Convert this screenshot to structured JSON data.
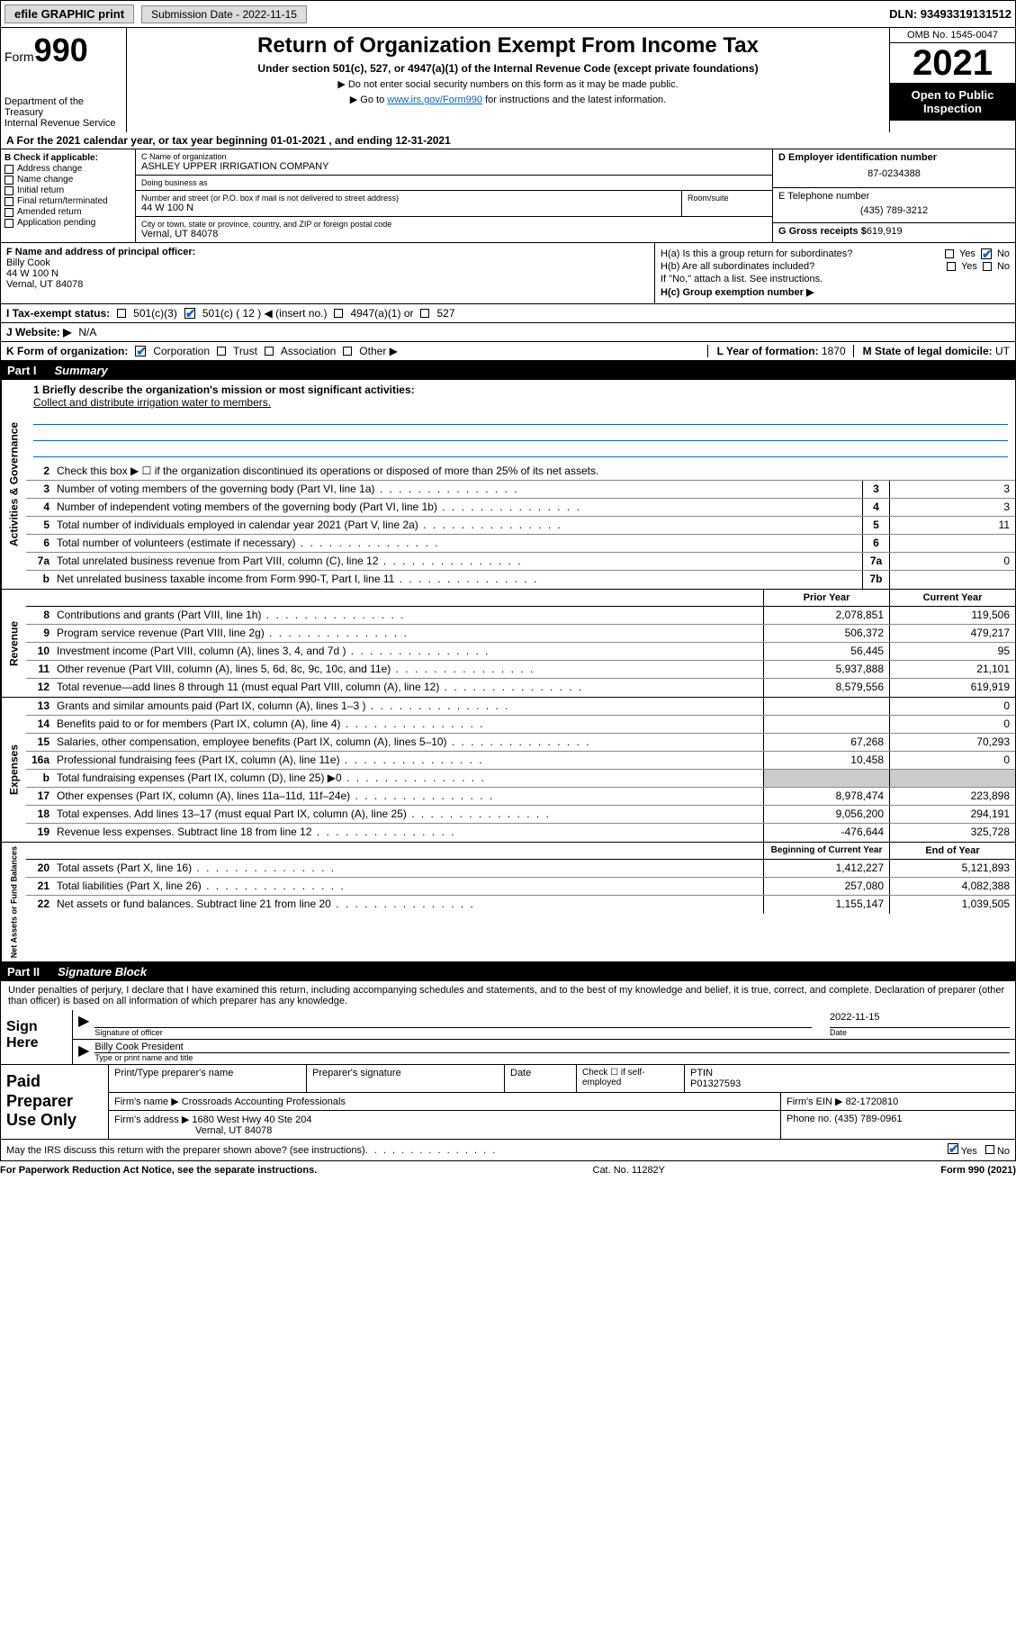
{
  "topbar": {
    "efile": "efile GRAPHIC print",
    "submission_label": "Submission Date - 2022-11-15",
    "dln": "DLN: 93493319131512"
  },
  "header": {
    "form_prefix": "Form",
    "form_number": "990",
    "dept": "Department of the Treasury",
    "irs": "Internal Revenue Service",
    "title": "Return of Organization Exempt From Income Tax",
    "subtitle": "Under section 501(c), 527, or 4947(a)(1) of the Internal Revenue Code (except private foundations)",
    "note1": "▶ Do not enter social security numbers on this form as it may be made public.",
    "note2_pre": "▶ Go to ",
    "note2_link": "www.irs.gov/Form990",
    "note2_post": " for instructions and the latest information.",
    "omb": "OMB No. 1545-0047",
    "year": "2021",
    "open": "Open to Public Inspection"
  },
  "row_a": "A For the 2021 calendar year, or tax year beginning 01-01-2021   , and ending 12-31-2021",
  "section_b": {
    "label": "B Check if applicable:",
    "opts": [
      "Address change",
      "Name change",
      "Initial return",
      "Final return/terminated",
      "Amended return",
      "Application pending"
    ]
  },
  "section_c": {
    "name_lbl": "C Name of organization",
    "name": "ASHLEY UPPER IRRIGATION COMPANY",
    "dba_lbl": "Doing business as",
    "dba": "",
    "addr_lbl": "Number and street (or P.O. box if mail is not delivered to street address)",
    "room_lbl": "Room/suite",
    "addr": "44 W 100 N",
    "city_lbl": "City or town, state or province, country, and ZIP or foreign postal code",
    "city": "Vernal, UT  84078"
  },
  "section_d": {
    "ein_lbl": "D Employer identification number",
    "ein": "87-0234388",
    "tel_lbl": "E Telephone number",
    "tel": "(435) 789-3212",
    "gross_lbl": "G Gross receipts $",
    "gross": "619,919"
  },
  "section_f": {
    "lbl": "F Name and address of principal officer:",
    "name": "Billy Cook",
    "addr1": "44 W 100 N",
    "addr2": "Vernal, UT  84078"
  },
  "section_h": {
    "ha": "H(a)  Is this a group return for subordinates?",
    "ha_yes": "Yes",
    "ha_no": "No",
    "hb": "H(b)  Are all subordinates included?",
    "hb_note": "If \"No,\" attach a list. See instructions.",
    "hc": "H(c)  Group exemption number ▶"
  },
  "row_i": {
    "lbl": "I   Tax-exempt status:",
    "o1": "501(c)(3)",
    "o2": "501(c) ( 12 ) ◀ (insert no.)",
    "o3": "4947(a)(1) or",
    "o4": "527"
  },
  "row_j": {
    "lbl": "J   Website: ▶",
    "val": "N/A"
  },
  "row_k": {
    "lbl": "K Form of organization:",
    "o1": "Corporation",
    "o2": "Trust",
    "o3": "Association",
    "o4": "Other ▶",
    "l_lbl": "L Year of formation:",
    "l_val": "1870",
    "m_lbl": "M State of legal domicile:",
    "m_val": "UT"
  },
  "part1": {
    "num": "Part I",
    "title": "Summary"
  },
  "mission": {
    "lbl": "1   Briefly describe the organization's mission or most significant activities:",
    "text": "Collect and distribute irrigation water to members."
  },
  "activities": {
    "l2": "Check this box ▶ ☐ if the organization discontinued its operations or disposed of more than 25% of its net assets.",
    "rows": [
      {
        "n": "3",
        "d": "Number of voting members of the governing body (Part VI, line 1a)",
        "b": "3",
        "v": "3"
      },
      {
        "n": "4",
        "d": "Number of independent voting members of the governing body (Part VI, line 1b)",
        "b": "4",
        "v": "3"
      },
      {
        "n": "5",
        "d": "Total number of individuals employed in calendar year 2021 (Part V, line 2a)",
        "b": "5",
        "v": "11"
      },
      {
        "n": "6",
        "d": "Total number of volunteers (estimate if necessary)",
        "b": "6",
        "v": ""
      },
      {
        "n": "7a",
        "d": "Total unrelated business revenue from Part VIII, column (C), line 12",
        "b": "7a",
        "v": "0"
      },
      {
        "n": "b",
        "d": "Net unrelated business taxable income from Form 990-T, Part I, line 11",
        "b": "7b",
        "v": ""
      }
    ]
  },
  "col_headers": {
    "prior": "Prior Year",
    "current": "Current Year"
  },
  "revenue": [
    {
      "n": "8",
      "d": "Contributions and grants (Part VIII, line 1h)",
      "p": "2,078,851",
      "c": "119,506"
    },
    {
      "n": "9",
      "d": "Program service revenue (Part VIII, line 2g)",
      "p": "506,372",
      "c": "479,217"
    },
    {
      "n": "10",
      "d": "Investment income (Part VIII, column (A), lines 3, 4, and 7d )",
      "p": "56,445",
      "c": "95"
    },
    {
      "n": "11",
      "d": "Other revenue (Part VIII, column (A), lines 5, 6d, 8c, 9c, 10c, and 11e)",
      "p": "5,937,888",
      "c": "21,101"
    },
    {
      "n": "12",
      "d": "Total revenue—add lines 8 through 11 (must equal Part VIII, column (A), line 12)",
      "p": "8,579,556",
      "c": "619,919"
    }
  ],
  "expenses": [
    {
      "n": "13",
      "d": "Grants and similar amounts paid (Part IX, column (A), lines 1–3 )",
      "p": "",
      "c": "0"
    },
    {
      "n": "14",
      "d": "Benefits paid to or for members (Part IX, column (A), line 4)",
      "p": "",
      "c": "0"
    },
    {
      "n": "15",
      "d": "Salaries, other compensation, employee benefits (Part IX, column (A), lines 5–10)",
      "p": "67,268",
      "c": "70,293"
    },
    {
      "n": "16a",
      "d": "Professional fundraising fees (Part IX, column (A), line 11e)",
      "p": "10,458",
      "c": "0"
    },
    {
      "n": "b",
      "d": "Total fundraising expenses (Part IX, column (D), line 25) ▶0",
      "p": "shaded",
      "c": "shaded"
    },
    {
      "n": "17",
      "d": "Other expenses (Part IX, column (A), lines 11a–11d, 11f–24e)",
      "p": "8,978,474",
      "c": "223,898"
    },
    {
      "n": "18",
      "d": "Total expenses. Add lines 13–17 (must equal Part IX, column (A), line 25)",
      "p": "9,056,200",
      "c": "294,191"
    },
    {
      "n": "19",
      "d": "Revenue less expenses. Subtract line 18 from line 12",
      "p": "-476,644",
      "c": "325,728"
    }
  ],
  "net_headers": {
    "begin": "Beginning of Current Year",
    "end": "End of Year"
  },
  "netassets": [
    {
      "n": "20",
      "d": "Total assets (Part X, line 16)",
      "p": "1,412,227",
      "c": "5,121,893"
    },
    {
      "n": "21",
      "d": "Total liabilities (Part X, line 26)",
      "p": "257,080",
      "c": "4,082,388"
    },
    {
      "n": "22",
      "d": "Net assets or fund balances. Subtract line 21 from line 20",
      "p": "1,155,147",
      "c": "1,039,505"
    }
  ],
  "part2": {
    "num": "Part II",
    "title": "Signature Block"
  },
  "sig": {
    "decl": "Under penalties of perjury, I declare that I have examined this return, including accompanying schedules and statements, and to the best of my knowledge and belief, it is true, correct, and complete. Declaration of preparer (other than officer) is based on all information of which preparer has any knowledge.",
    "sign_here": "Sign Here",
    "sig_officer": "Signature of officer",
    "date": "2022-11-15",
    "date_lbl": "Date",
    "name_title": "Billy Cook  President",
    "name_title_lbl": "Type or print name and title"
  },
  "prep": {
    "label": "Paid Preparer Use Only",
    "h_name": "Print/Type preparer's name",
    "h_sig": "Preparer's signature",
    "h_date": "Date",
    "h_check": "Check ☐ if self-employed",
    "h_ptin": "PTIN",
    "ptin": "P01327593",
    "firm_name_lbl": "Firm's name    ▶",
    "firm_name": "Crossroads Accounting Professionals",
    "firm_ein_lbl": "Firm's EIN ▶",
    "firm_ein": "82-1720810",
    "firm_addr_lbl": "Firm's address ▶",
    "firm_addr1": "1680 West Hwy 40 Ste 204",
    "firm_addr2": "Vernal, UT  84078",
    "phone_lbl": "Phone no.",
    "phone": "(435) 789-0961"
  },
  "footer": {
    "discuss": "May the IRS discuss this return with the preparer shown above? (see instructions)",
    "yes": "Yes",
    "no": "No",
    "paperwork": "For Paperwork Reduction Act Notice, see the separate instructions.",
    "cat": "Cat. No. 11282Y",
    "form": "Form 990 (2021)"
  },
  "vlabels": {
    "ag": "Activities & Governance",
    "rev": "Revenue",
    "exp": "Expenses",
    "net": "Net Assets or Fund Balances"
  }
}
